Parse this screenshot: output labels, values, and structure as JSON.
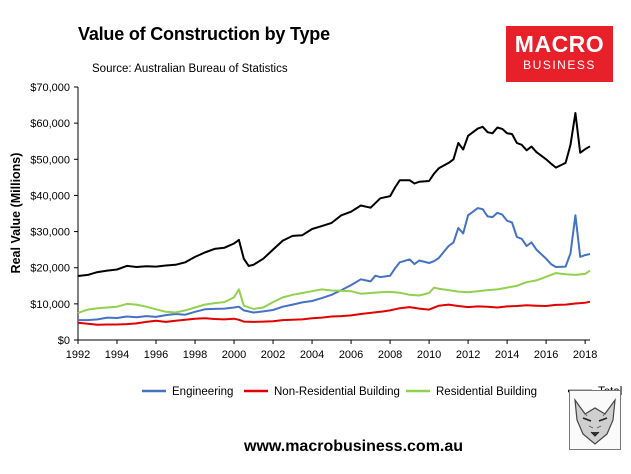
{
  "header": {
    "title": "Value of Construction by Type",
    "source": "Source: Australian Bureau of Statistics"
  },
  "logo": {
    "line1": "MACRO",
    "line2": "BUSINESS",
    "color": "#e8202a"
  },
  "footer": {
    "url": "www.macrobusiness.com.au"
  },
  "chart_data": {
    "type": "line",
    "title": "Value of Construction by Type",
    "xlabel": "",
    "ylabel": "Real Value (Millions)",
    "xlim": [
      1992,
      2018.25
    ],
    "ylim": [
      0,
      70000
    ],
    "grid": false,
    "legend_position": "bottom",
    "x_ticks": [
      1992,
      1994,
      1996,
      1998,
      2000,
      2002,
      2004,
      2006,
      2008,
      2010,
      2012,
      2014,
      2016,
      2018
    ],
    "x_tick_labels": [
      "1992",
      "1994",
      "1996",
      "1998",
      "2000",
      "2002",
      "2004",
      "2006",
      "2008",
      "2010",
      "2012",
      "2014",
      "2016",
      "2018"
    ],
    "y_ticks": [
      0,
      10000,
      20000,
      30000,
      40000,
      50000,
      60000,
      70000
    ],
    "y_tick_labels": [
      "$0",
      "$10,000",
      "$20,000",
      "$30,000",
      "$40,000",
      "$50,000",
      "$60,000",
      "$70,000"
    ],
    "series": [
      {
        "name": "Engineering",
        "color": "#4472c4",
        "points": [
          [
            1992,
            5500
          ],
          [
            1992.5,
            5500
          ],
          [
            1993,
            5700
          ],
          [
            1993.5,
            6200
          ],
          [
            1994,
            6100
          ],
          [
            1994.5,
            6500
          ],
          [
            1995,
            6300
          ],
          [
            1995.5,
            6600
          ],
          [
            1996,
            6400
          ],
          [
            1996.5,
            6900
          ],
          [
            1997,
            7200
          ],
          [
            1997.5,
            7000
          ],
          [
            1998,
            7800
          ],
          [
            1998.5,
            8500
          ],
          [
            1999,
            8600
          ],
          [
            1999.5,
            8700
          ],
          [
            2000,
            9000
          ],
          [
            2000.25,
            9200
          ],
          [
            2000.5,
            8200
          ],
          [
            2001,
            7600
          ],
          [
            2001.5,
            7900
          ],
          [
            2002,
            8300
          ],
          [
            2002.5,
            9200
          ],
          [
            2003,
            9800
          ],
          [
            2003.5,
            10400
          ],
          [
            2004,
            10800
          ],
          [
            2004.5,
            11600
          ],
          [
            2005,
            12500
          ],
          [
            2005.5,
            13800
          ],
          [
            2006,
            15200
          ],
          [
            2006.5,
            16800
          ],
          [
            2007,
            16200
          ],
          [
            2007.25,
            17800
          ],
          [
            2007.5,
            17400
          ],
          [
            2008,
            17800
          ],
          [
            2008.25,
            19800
          ],
          [
            2008.5,
            21500
          ],
          [
            2009,
            22300
          ],
          [
            2009.25,
            21000
          ],
          [
            2009.5,
            22000
          ],
          [
            2010,
            21300
          ],
          [
            2010.25,
            21800
          ],
          [
            2010.5,
            22700
          ],
          [
            2011,
            26000
          ],
          [
            2011.25,
            27000
          ],
          [
            2011.5,
            31000
          ],
          [
            2011.75,
            29500
          ],
          [
            2012,
            34500
          ],
          [
            2012.5,
            36500
          ],
          [
            2012.75,
            36200
          ],
          [
            2013,
            34200
          ],
          [
            2013.25,
            34000
          ],
          [
            2013.5,
            35200
          ],
          [
            2013.75,
            34700
          ],
          [
            2014,
            33000
          ],
          [
            2014.25,
            32500
          ],
          [
            2014.5,
            28500
          ],
          [
            2014.75,
            28000
          ],
          [
            2015,
            26000
          ],
          [
            2015.25,
            27000
          ],
          [
            2015.5,
            25000
          ],
          [
            2016,
            22500
          ],
          [
            2016.25,
            21000
          ],
          [
            2016.5,
            20200
          ],
          [
            2017,
            20300
          ],
          [
            2017.25,
            24000
          ],
          [
            2017.5,
            34500
          ],
          [
            2017.75,
            23000
          ],
          [
            2018,
            23500
          ],
          [
            2018.25,
            23800
          ]
        ]
      },
      {
        "name": "Non-Residential Building",
        "color": "#e00000",
        "points": [
          [
            1992,
            4800
          ],
          [
            1992.5,
            4500
          ],
          [
            1993,
            4200
          ],
          [
            1993.5,
            4300
          ],
          [
            1994,
            4300
          ],
          [
            1994.5,
            4400
          ],
          [
            1995,
            4600
          ],
          [
            1995.5,
            5000
          ],
          [
            1996,
            5300
          ],
          [
            1996.5,
            5000
          ],
          [
            1997,
            5300
          ],
          [
            1997.5,
            5600
          ],
          [
            1998,
            5900
          ],
          [
            1998.5,
            6000
          ],
          [
            1999,
            5800
          ],
          [
            1999.5,
            5700
          ],
          [
            2000,
            5900
          ],
          [
            2000.25,
            5600
          ],
          [
            2000.5,
            5100
          ],
          [
            2001,
            5000
          ],
          [
            2001.5,
            5100
          ],
          [
            2002,
            5200
          ],
          [
            2002.5,
            5500
          ],
          [
            2003,
            5600
          ],
          [
            2003.5,
            5700
          ],
          [
            2004,
            6000
          ],
          [
            2004.5,
            6200
          ],
          [
            2005,
            6500
          ],
          [
            2005.5,
            6600
          ],
          [
            2006,
            6800
          ],
          [
            2006.5,
            7200
          ],
          [
            2007,
            7500
          ],
          [
            2007.5,
            7800
          ],
          [
            2008,
            8200
          ],
          [
            2008.5,
            8800
          ],
          [
            2009,
            9100
          ],
          [
            2009.5,
            8700
          ],
          [
            2010,
            8400
          ],
          [
            2010.5,
            9500
          ],
          [
            2011,
            9800
          ],
          [
            2011.5,
            9400
          ],
          [
            2012,
            9100
          ],
          [
            2012.5,
            9300
          ],
          [
            2013,
            9200
          ],
          [
            2013.5,
            9000
          ],
          [
            2014,
            9300
          ],
          [
            2014.5,
            9400
          ],
          [
            2015,
            9600
          ],
          [
            2015.5,
            9500
          ],
          [
            2016,
            9400
          ],
          [
            2016.5,
            9700
          ],
          [
            2017,
            9800
          ],
          [
            2017.5,
            10100
          ],
          [
            2018,
            10300
          ],
          [
            2018.25,
            10600
          ]
        ]
      },
      {
        "name": "Residential Building",
        "color": "#92d050",
        "points": [
          [
            1992,
            7500
          ],
          [
            1992.5,
            8400
          ],
          [
            1993,
            8800
          ],
          [
            1993.5,
            9000
          ],
          [
            1994,
            9200
          ],
          [
            1994.5,
            10000
          ],
          [
            1995,
            9800
          ],
          [
            1995.5,
            9200
          ],
          [
            1996,
            8500
          ],
          [
            1996.5,
            7800
          ],
          [
            1997,
            7600
          ],
          [
            1997.5,
            8200
          ],
          [
            1998,
            9000
          ],
          [
            1998.5,
            9800
          ],
          [
            1999,
            10200
          ],
          [
            1999.5,
            10500
          ],
          [
            2000,
            11800
          ],
          [
            2000.25,
            14000
          ],
          [
            2000.5,
            9500
          ],
          [
            2001,
            8600
          ],
          [
            2001.5,
            9000
          ],
          [
            2002,
            10500
          ],
          [
            2002.5,
            11800
          ],
          [
            2003,
            12500
          ],
          [
            2003.5,
            13000
          ],
          [
            2004,
            13500
          ],
          [
            2004.5,
            14000
          ],
          [
            2005,
            13700
          ],
          [
            2005.5,
            13600
          ],
          [
            2006,
            13500
          ],
          [
            2006.5,
            12800
          ],
          [
            2007,
            13000
          ],
          [
            2007.5,
            13200
          ],
          [
            2008,
            13300
          ],
          [
            2008.5,
            13100
          ],
          [
            2009,
            12500
          ],
          [
            2009.5,
            12300
          ],
          [
            2010,
            13000
          ],
          [
            2010.25,
            14500
          ],
          [
            2010.5,
            14200
          ],
          [
            2011,
            13800
          ],
          [
            2011.5,
            13400
          ],
          [
            2012,
            13200
          ],
          [
            2012.5,
            13500
          ],
          [
            2013,
            13800
          ],
          [
            2013.5,
            14000
          ],
          [
            2014,
            14500
          ],
          [
            2014.5,
            15000
          ],
          [
            2015,
            16000
          ],
          [
            2015.5,
            16500
          ],
          [
            2016,
            17500
          ],
          [
            2016.5,
            18500
          ],
          [
            2017,
            18200
          ],
          [
            2017.5,
            18000
          ],
          [
            2018,
            18300
          ],
          [
            2018.25,
            19200
          ]
        ]
      },
      {
        "name": "Total",
        "color": "#000000",
        "points": [
          [
            1992,
            17700
          ],
          [
            1992.5,
            18000
          ],
          [
            1993,
            18800
          ],
          [
            1993.5,
            19200
          ],
          [
            1994,
            19500
          ],
          [
            1994.5,
            20500
          ],
          [
            1995,
            20200
          ],
          [
            1995.5,
            20400
          ],
          [
            1996,
            20300
          ],
          [
            1996.5,
            20600
          ],
          [
            1997,
            20800
          ],
          [
            1997.5,
            21500
          ],
          [
            1998,
            23000
          ],
          [
            1998.5,
            24200
          ],
          [
            1999,
            25200
          ],
          [
            1999.5,
            25500
          ],
          [
            2000,
            26700
          ],
          [
            2000.25,
            27700
          ],
          [
            2000.5,
            22500
          ],
          [
            2000.75,
            20500
          ],
          [
            2001,
            20800
          ],
          [
            2001.5,
            22500
          ],
          [
            2002,
            25000
          ],
          [
            2002.5,
            27500
          ],
          [
            2003,
            28800
          ],
          [
            2003.5,
            29000
          ],
          [
            2004,
            30700
          ],
          [
            2004.5,
            31500
          ],
          [
            2005,
            32400
          ],
          [
            2005.5,
            34500
          ],
          [
            2006,
            35500
          ],
          [
            2006.5,
            37200
          ],
          [
            2007,
            36600
          ],
          [
            2007.5,
            39200
          ],
          [
            2008,
            39800
          ],
          [
            2008.25,
            42200
          ],
          [
            2008.5,
            44200
          ],
          [
            2009,
            44200
          ],
          [
            2009.25,
            43300
          ],
          [
            2009.5,
            43800
          ],
          [
            2010,
            44000
          ],
          [
            2010.25,
            46000
          ],
          [
            2010.5,
            47500
          ],
          [
            2011,
            49000
          ],
          [
            2011.25,
            50000
          ],
          [
            2011.5,
            54500
          ],
          [
            2011.75,
            52700
          ],
          [
            2012,
            56500
          ],
          [
            2012.5,
            58500
          ],
          [
            2012.75,
            59000
          ],
          [
            2013,
            57500
          ],
          [
            2013.25,
            57200
          ],
          [
            2013.5,
            58800
          ],
          [
            2013.75,
            58400
          ],
          [
            2014,
            57200
          ],
          [
            2014.25,
            57000
          ],
          [
            2014.5,
            54500
          ],
          [
            2014.75,
            54000
          ],
          [
            2015,
            52500
          ],
          [
            2015.25,
            53500
          ],
          [
            2015.5,
            52000
          ],
          [
            2016,
            50000
          ],
          [
            2016.25,
            48800
          ],
          [
            2016.5,
            47700
          ],
          [
            2017,
            49000
          ],
          [
            2017.25,
            54000
          ],
          [
            2017.5,
            62800
          ],
          [
            2017.75,
            51800
          ],
          [
            2018,
            52800
          ],
          [
            2018.25,
            53600
          ]
        ]
      }
    ]
  }
}
